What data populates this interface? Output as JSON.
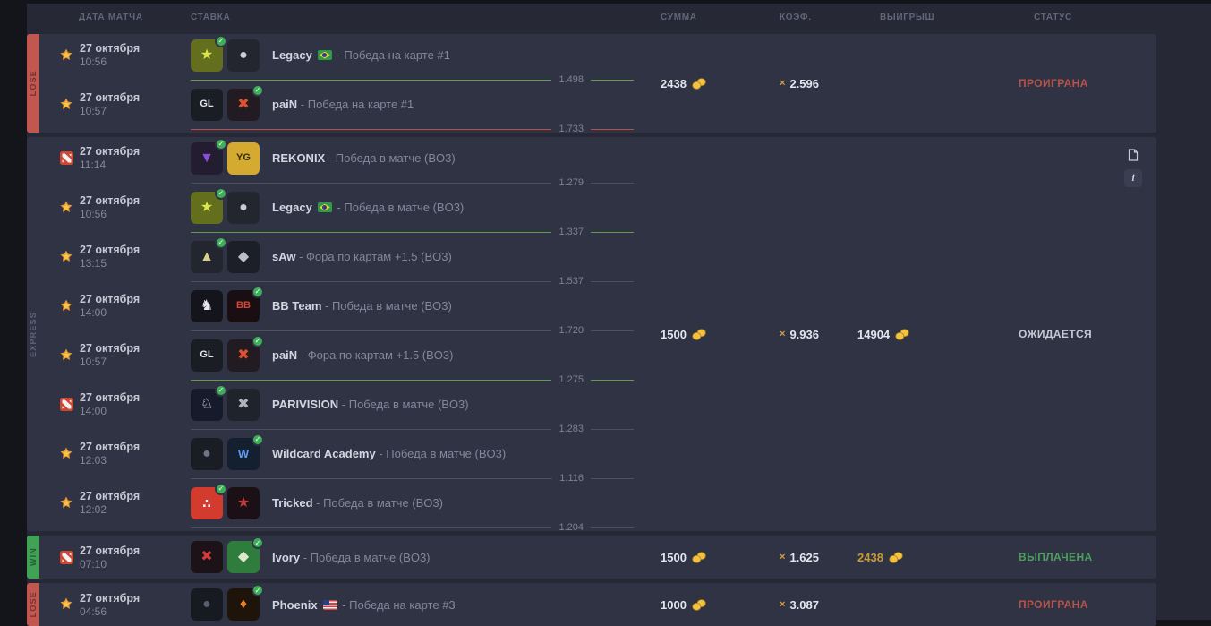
{
  "palette": {
    "card_bg": "#2f3343",
    "panel_bg": "#262836",
    "page_bg": "#14151b",
    "win_green": "#4d9e5f",
    "lose_red": "#b8524c",
    "gold": "#d8a23a"
  },
  "labels": {
    "coef_prefix": "×"
  },
  "icons": {
    "cs": "cs2-game-icon",
    "dota": "dota2-game-icon",
    "coins": "coins-icon",
    "pick": "pick-check-icon",
    "pick_glyph": "✓",
    "doc": "bet-details-icon",
    "info": "bet-info-icon",
    "info_glyph": "i"
  },
  "header": {
    "columns": [
      "ДАТА МАТЧА",
      "СТАВКА",
      "СУММА",
      "КОЭФ.",
      "ВЫИГРЫШ",
      "СТАТУС"
    ]
  },
  "bets": [
    {
      "kind": "lose",
      "kind_label": "LOSE",
      "sum": "2438",
      "coef": "2.596",
      "win": "",
      "win_paid": false,
      "status": "ПРОИГРАНА",
      "status_kind": "lose",
      "has_actions": false,
      "matches": [
        {
          "game": "cs",
          "date": "27 октября",
          "time": "10:56",
          "pick": 1,
          "name": "Legacy",
          "flag": "br",
          "market": "- Победа на карте #1",
          "odds": "1.498",
          "result": "win",
          "team1": {
            "bg": "#636f1d",
            "fg": "#d9e74d",
            "glyph": "★"
          },
          "team2": {
            "bg": "#23252f",
            "fg": "#c8ccd8",
            "glyph": "●"
          }
        },
        {
          "game": "cs",
          "date": "27 октября",
          "time": "10:57",
          "pick": 2,
          "name": "paiN",
          "flag": null,
          "market": "- Победа на карте #1",
          "odds": "1.733",
          "result": "lose",
          "team1": {
            "bg": "#1b1d25",
            "fg": "#e3e6ee",
            "glyph": "GL",
            "fs": 11
          },
          "team2": {
            "bg": "#221c22",
            "fg": "#e0512f",
            "glyph": "✖"
          }
        }
      ]
    },
    {
      "kind": "express",
      "kind_label": "EXPRESS",
      "sum": "1500",
      "coef": "9.936",
      "win": "14904",
      "win_paid": false,
      "status": "ОЖИДАЕТСЯ",
      "status_kind": "pending",
      "has_actions": true,
      "matches": [
        {
          "game": "dota",
          "date": "27 октября",
          "time": "11:14",
          "pick": 1,
          "name": "REKONIX",
          "flag": null,
          "market": "- Победа в матче (BO3)",
          "odds": "1.279",
          "result": "pending",
          "team1": {
            "bg": "#241d31",
            "fg": "#8b4fd6",
            "glyph": "▼"
          },
          "team2": {
            "bg": "#d4aa30",
            "fg": "#332d12",
            "glyph": "YG",
            "fs": 11
          }
        },
        {
          "game": "cs",
          "date": "27 октября",
          "time": "10:56",
          "pick": 1,
          "name": "Legacy",
          "flag": "br",
          "market": "- Победа в матче (BO3)",
          "odds": "1.337",
          "result": "win",
          "team1": {
            "bg": "#636f1d",
            "fg": "#d9e74d",
            "glyph": "★"
          },
          "team2": {
            "bg": "#23252f",
            "fg": "#c8ccd8",
            "glyph": "●"
          }
        },
        {
          "game": "cs",
          "date": "27 октября",
          "time": "13:15",
          "pick": 1,
          "name": "sAw",
          "flag": null,
          "market": "- Фора по картам +1.5 (BO3)",
          "odds": "1.537",
          "result": "pending",
          "team1": {
            "bg": "#23252f",
            "fg": "#d9cf8f",
            "glyph": "▲"
          },
          "team2": {
            "bg": "#1d1f28",
            "fg": "#b9bfcc",
            "glyph": "◆"
          }
        },
        {
          "game": "cs",
          "date": "27 октября",
          "time": "14:00",
          "pick": 2,
          "name": "BB Team",
          "flag": null,
          "market": "- Победа в матче (BO3)",
          "odds": "1.720",
          "result": "pending",
          "team1": {
            "bg": "#14151c",
            "fg": "#e6e9f0",
            "glyph": "♞"
          },
          "team2": {
            "bg": "#190f13",
            "fg": "#e04438",
            "glyph": "BB",
            "fs": 11
          }
        },
        {
          "game": "cs",
          "date": "27 октября",
          "time": "10:57",
          "pick": 2,
          "name": "paiN",
          "flag": null,
          "market": "- Фора по картам +1.5 (BO3)",
          "odds": "1.275",
          "result": "win",
          "team1": {
            "bg": "#1b1d25",
            "fg": "#e3e6ee",
            "glyph": "GL",
            "fs": 11
          },
          "team2": {
            "bg": "#221c22",
            "fg": "#e0512f",
            "glyph": "✖"
          }
        },
        {
          "game": "dota",
          "date": "27 октября",
          "time": "14:00",
          "pick": 1,
          "name": "PARIVISION",
          "flag": null,
          "market": "- Победа в матче (BO3)",
          "odds": "1.283",
          "result": "pending",
          "team1": {
            "bg": "#161b2b",
            "fg": "#e8ecf2",
            "glyph": "♘"
          },
          "team2": {
            "bg": "#20222c",
            "fg": "#aeb3c2",
            "glyph": "✖"
          }
        },
        {
          "game": "cs",
          "date": "27 октября",
          "time": "12:03",
          "pick": 2,
          "name": "Wildcard Academy",
          "flag": null,
          "market": "- Победа в матче (BO3)",
          "odds": "1.116",
          "result": "pending",
          "team1": {
            "bg": "#1b1d25",
            "fg": "#6f7487",
            "glyph": "●"
          },
          "team2": {
            "bg": "#142030",
            "fg": "#5b9bf0",
            "glyph": "W",
            "fs": 13
          }
        },
        {
          "game": "cs",
          "date": "27 октября",
          "time": "12:02",
          "pick": 1,
          "name": "Tricked",
          "flag": null,
          "market": "- Победа в матче (BO3)",
          "odds": "1.204",
          "result": "pending",
          "team1": {
            "bg": "#d23b2e",
            "fg": "#ffffff",
            "glyph": "∴",
            "fs": 14
          },
          "team2": {
            "bg": "#1a1016",
            "fg": "#c23c3c",
            "glyph": "★"
          }
        }
      ]
    },
    {
      "kind": "win",
      "kind_label": "WIN",
      "sum": "1500",
      "coef": "1.625",
      "win": "2438",
      "win_paid": true,
      "status": "ВЫПЛАЧЕНА",
      "status_kind": "win",
      "has_actions": false,
      "matches": [
        {
          "game": "dota",
          "date": "27 октября",
          "time": "07:10",
          "pick": 2,
          "name": "Ivory",
          "flag": null,
          "market": "- Победа в матче (BO3)",
          "team1": {
            "bg": "#1c1318",
            "fg": "#d23c3c",
            "glyph": "✖"
          },
          "team2": {
            "bg": "#2e7d3c",
            "fg": "#dfe8c8",
            "glyph": "◆"
          }
        }
      ]
    },
    {
      "kind": "lose",
      "kind_label": "LOSE",
      "sum": "1000",
      "coef": "3.087",
      "win": "",
      "win_paid": false,
      "status": "ПРОИГРАНА",
      "status_kind": "lose",
      "has_actions": false,
      "matches": [
        {
          "game": "cs",
          "date": "27 октября",
          "time": "04:56",
          "pick": 2,
          "name": "Phoenix",
          "flag": "us",
          "market": "- Победа на карте #3",
          "team1": {
            "bg": "#181a22",
            "fg": "#5a5f70",
            "glyph": "●"
          },
          "team2": {
            "bg": "#1f1409",
            "fg": "#e8822e",
            "glyph": "♦"
          }
        }
      ]
    }
  ]
}
